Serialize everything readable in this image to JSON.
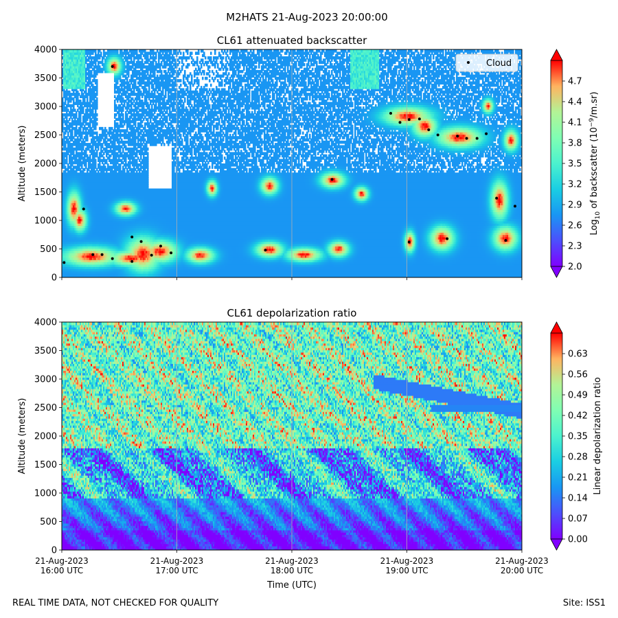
{
  "figure": {
    "suptitle": "M2HATS 21-Aug-2023 20:00:00",
    "footer_left": "REAL TIME DATA, NOT CHECKED FOR QUALITY",
    "footer_right": "Site: ISS1",
    "xlabel": "Time (UTC)",
    "time_ticks": [
      {
        "date": "21-Aug-2023",
        "time": "16:00 UTC",
        "hour": 16
      },
      {
        "date": "21-Aug-2023",
        "time": "17:00 UTC",
        "hour": 17
      },
      {
        "date": "21-Aug-2023",
        "time": "18:00 UTC",
        "hour": 18
      },
      {
        "date": "21-Aug-2023",
        "time": "19:00 UTC",
        "hour": 19
      },
      {
        "date": "21-Aug-2023",
        "time": "20:00 UTC",
        "hour": 20
      }
    ],
    "xlim": [
      16,
      20
    ]
  },
  "chart_data": [
    {
      "type": "heatmap",
      "title": "CL61 attenuated backscatter",
      "xlabel": "Time (UTC)",
      "ylabel": "Altitude (meters)",
      "ylim": [
        0,
        4000
      ],
      "yticks": [
        0,
        500,
        1000,
        1500,
        2000,
        2500,
        3000,
        3500,
        4000
      ],
      "colorbar": {
        "label": "Log10 of backscatter (10^-9/m.sr)",
        "label_parts": {
          "pre": "Log",
          "sub": "10",
          "mid": " of backscatter (10",
          "sup": "−9",
          "post": "/m.sr)"
        },
        "range": [
          2.0,
          5.0
        ],
        "ticks": [
          "2.0",
          "2.3",
          "2.6",
          "2.9",
          "3.2",
          "3.5",
          "3.8",
          "4.1",
          "4.4",
          "4.7"
        ],
        "colormap": "rainbow"
      },
      "legend": {
        "entry": "Cloud",
        "location": "upper right"
      },
      "cloud_points": [
        {
          "t": 16.02,
          "alt": 260
        },
        {
          "t": 16.19,
          "alt": 1200
        },
        {
          "t": 16.27,
          "alt": 400
        },
        {
          "t": 16.35,
          "alt": 400
        },
        {
          "t": 16.44,
          "alt": 3700
        },
        {
          "t": 16.44,
          "alt": 330
        },
        {
          "t": 16.61,
          "alt": 280
        },
        {
          "t": 16.61,
          "alt": 710
        },
        {
          "t": 16.69,
          "alt": 630
        },
        {
          "t": 16.78,
          "alt": 390
        },
        {
          "t": 16.86,
          "alt": 550
        },
        {
          "t": 16.95,
          "alt": 430
        },
        {
          "t": 17.77,
          "alt": 480
        },
        {
          "t": 18.35,
          "alt": 1720
        },
        {
          "t": 18.86,
          "alt": 2880
        },
        {
          "t": 18.94,
          "alt": 2720
        },
        {
          "t": 19.02,
          "alt": 620
        },
        {
          "t": 19.02,
          "alt": 2770
        },
        {
          "t": 19.11,
          "alt": 2780
        },
        {
          "t": 19.19,
          "alt": 2590
        },
        {
          "t": 19.27,
          "alt": 2500
        },
        {
          "t": 19.35,
          "alt": 680
        },
        {
          "t": 19.44,
          "alt": 2480
        },
        {
          "t": 19.52,
          "alt": 2440
        },
        {
          "t": 19.61,
          "alt": 2440
        },
        {
          "t": 19.69,
          "alt": 2520
        },
        {
          "t": 19.78,
          "alt": 1390
        },
        {
          "t": 19.86,
          "alt": 650
        },
        {
          "t": 19.94,
          "alt": 1250
        }
      ]
    },
    {
      "type": "heatmap",
      "title": "CL61 depolarization ratio",
      "xlabel": "Time (UTC)",
      "ylabel": "Altitude (meters)",
      "ylim": [
        0,
        4000
      ],
      "yticks": [
        0,
        500,
        1000,
        1500,
        2000,
        2500,
        3000,
        3500,
        4000
      ],
      "colorbar": {
        "label": "Linear depolarization ratio",
        "range": [
          0.0,
          0.7
        ],
        "ticks": [
          "0.00",
          "0.07",
          "0.14",
          "0.21",
          "0.28",
          "0.35",
          "0.42",
          "0.49",
          "0.56",
          "0.63"
        ],
        "colormap": "rainbow"
      }
    }
  ]
}
